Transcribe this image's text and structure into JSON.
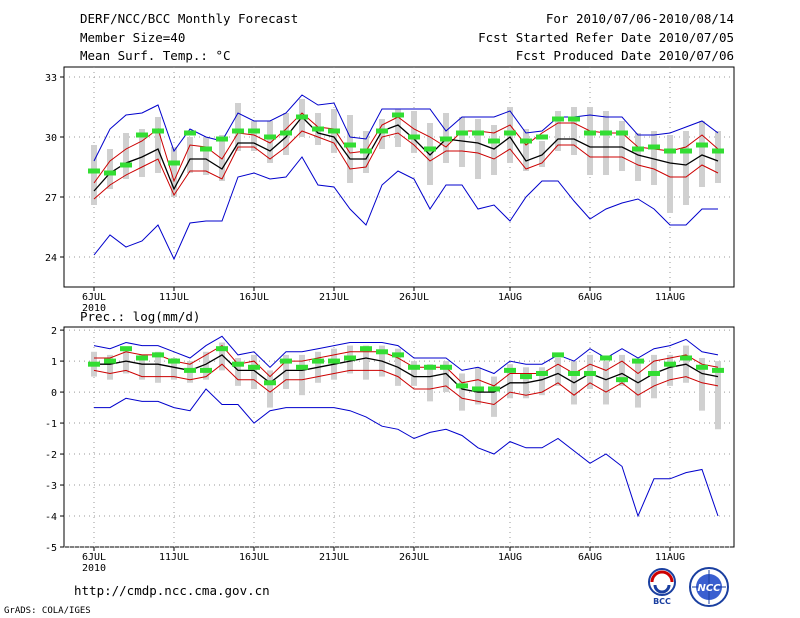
{
  "header": {
    "title": "DERF/NCC/BCC Monthly Forecast",
    "member_size": "Member Size=40",
    "variable": "Mean Surf. Temp.: °C",
    "period": "For 2010/07/06-2010/08/14",
    "fcst_started": "Fcst Started Refer Date 2010/07/05",
    "fcst_produced": "Fcst Produced Date 2010/07/06"
  },
  "footer": {
    "url": "http://cmdp.ncc.cma.gov.cn",
    "grads": "GrADS: COLA/IGES",
    "logo_bcc": "BCC",
    "logo_ncc": "NCC"
  },
  "colors": {
    "max_min": "#0000cc",
    "pct": "#cc0000",
    "mean": "#000000",
    "box": "#d0d0d0",
    "obs": "#33dd33",
    "grid": "#999999"
  },
  "chart_data": [
    {
      "type": "line",
      "title": "Mean Surf. Temp.: °C",
      "x_tick_labels": [
        "6JUL",
        "11JUL",
        "16JUL",
        "21JUL",
        "26JUL",
        "1AUG",
        "6AUG",
        "11AUG"
      ],
      "x_tick_days": [
        1,
        6,
        11,
        16,
        21,
        27,
        32,
        37
      ],
      "year_label": "2010",
      "ylim": [
        22.5,
        33.5
      ],
      "y_ticks": [
        24,
        27,
        30,
        33
      ],
      "days": [
        1,
        2,
        3,
        4,
        5,
        6,
        7,
        8,
        9,
        10,
        11,
        12,
        13,
        14,
        15,
        16,
        17,
        18,
        19,
        20,
        21,
        22,
        23,
        24,
        25,
        26,
        27,
        28,
        29,
        30,
        31,
        32,
        33,
        34,
        35,
        36,
        37,
        38,
        39,
        40
      ],
      "series": [
        {
          "name": "max",
          "style": "max_min",
          "values": [
            28.8,
            30.4,
            31.1,
            31.2,
            31.6,
            29.3,
            30.4,
            30.0,
            29.8,
            31.2,
            30.8,
            30.8,
            31.2,
            32.1,
            31.6,
            31.7,
            30.0,
            29.9,
            31.4,
            31.4,
            31.4,
            31.4,
            30.3,
            31.0,
            31.0,
            31.0,
            31.3,
            30.2,
            30.3,
            31.0,
            31.0,
            31.1,
            31.0,
            31.0,
            30.1,
            30.1,
            30.2,
            30.5,
            30.8,
            30.2
          ]
        },
        {
          "name": "p90",
          "style": "pct",
          "values": [
            27.7,
            28.8,
            29.4,
            29.8,
            30.4,
            27.8,
            29.6,
            29.5,
            28.9,
            30.2,
            30.1,
            29.7,
            30.4,
            31.2,
            30.5,
            30.4,
            29.2,
            29.3,
            30.6,
            31.0,
            30.4,
            30.0,
            29.5,
            30.3,
            30.3,
            30.2,
            30.6,
            29.6,
            30.2,
            30.7,
            30.7,
            30.3,
            30.2,
            30.2,
            29.5,
            29.4,
            29.3,
            29.5,
            30.1,
            29.4
          ]
        },
        {
          "name": "mean",
          "style": "mean",
          "values": [
            27.3,
            28.2,
            28.7,
            29.0,
            29.4,
            27.4,
            28.9,
            28.9,
            28.4,
            29.7,
            29.7,
            29.3,
            30.0,
            31.0,
            30.2,
            30.0,
            28.9,
            28.9,
            30.3,
            30.6,
            29.9,
            29.1,
            29.9,
            29.8,
            29.7,
            29.4,
            30.0,
            28.8,
            29.1,
            29.9,
            29.9,
            29.5,
            29.5,
            29.5,
            29.1,
            28.9,
            28.7,
            28.6,
            29.1,
            28.8
          ]
        },
        {
          "name": "p10",
          "style": "pct",
          "values": [
            26.9,
            27.6,
            28.1,
            28.5,
            28.9,
            27.1,
            28.3,
            28.3,
            27.9,
            29.5,
            29.5,
            28.9,
            29.5,
            30.3,
            30.0,
            29.7,
            28.4,
            28.5,
            30.0,
            30.2,
            29.6,
            28.8,
            29.3,
            29.3,
            29.2,
            28.9,
            29.4,
            28.4,
            28.7,
            29.6,
            29.6,
            29.0,
            29.0,
            29.0,
            28.6,
            28.4,
            28.0,
            28.0,
            28.6,
            28.2
          ]
        },
        {
          "name": "min",
          "style": "max_min",
          "values": [
            24.1,
            25.1,
            24.5,
            24.8,
            25.6,
            23.9,
            25.7,
            25.8,
            25.8,
            28.0,
            28.2,
            27.9,
            28.0,
            29.0,
            27.6,
            27.5,
            26.4,
            25.6,
            27.6,
            28.3,
            27.9,
            26.4,
            27.6,
            27.6,
            26.4,
            26.6,
            25.8,
            27.0,
            27.8,
            27.8,
            26.8,
            25.9,
            26.4,
            26.7,
            26.9,
            26.4,
            25.6,
            25.6,
            26.4,
            26.4
          ]
        },
        {
          "name": "box_low",
          "style": "box",
          "values": [
            26.6,
            27.4,
            27.9,
            28.0,
            28.2,
            27.0,
            28.2,
            28.1,
            27.8,
            29.3,
            29.3,
            28.7,
            29.1,
            30.0,
            29.6,
            29.2,
            27.7,
            28.2,
            29.4,
            29.5,
            29.2,
            27.6,
            28.7,
            28.5,
            27.9,
            28.1,
            28.7,
            28.3,
            28.5,
            29.3,
            29.1,
            28.1,
            28.1,
            28.3,
            27.8,
            27.6,
            26.2,
            26.6,
            27.5,
            27.7
          ]
        },
        {
          "name": "box_high",
          "style": "box",
          "values": [
            29.6,
            29.4,
            30.2,
            30.4,
            31.0,
            29.5,
            30.0,
            30.0,
            30.1,
            31.7,
            30.8,
            30.8,
            31.2,
            31.9,
            31.2,
            31.4,
            31.1,
            30.3,
            30.9,
            31.4,
            31.3,
            30.7,
            31.2,
            31.0,
            30.9,
            30.6,
            31.5,
            30.4,
            29.8,
            31.3,
            31.5,
            31.5,
            31.3,
            30.8,
            30.2,
            30.3,
            30.1,
            30.3,
            30.8,
            30.3
          ]
        },
        {
          "name": "obs",
          "style": "obs",
          "values": [
            28.3,
            28.2,
            28.6,
            30.1,
            30.3,
            28.7,
            30.2,
            29.4,
            29.9,
            30.3,
            30.3,
            30.0,
            30.2,
            31.0,
            30.4,
            30.3,
            29.6,
            29.3,
            30.3,
            31.1,
            30.0,
            29.4,
            29.9,
            30.2,
            30.2,
            29.8,
            30.2,
            29.8,
            30.0,
            30.9,
            30.9,
            30.2,
            30.2,
            30.2,
            29.4,
            29.5,
            29.3,
            29.3,
            29.6,
            29.3
          ]
        }
      ]
    },
    {
      "type": "line",
      "title": "Prec.: log(mm/d)",
      "x_tick_labels": [
        "6JUL",
        "11JUL",
        "16JUL",
        "21JUL",
        "26JUL",
        "1AUG",
        "6AUG",
        "11AUG"
      ],
      "x_tick_days": [
        1,
        6,
        11,
        16,
        21,
        27,
        32,
        37
      ],
      "year_label": "2010",
      "ylim": [
        -5,
        2.1
      ],
      "y_ticks": [
        -5,
        -4,
        -3,
        -2,
        -1,
        0,
        1,
        2
      ],
      "days": [
        1,
        2,
        3,
        4,
        5,
        6,
        7,
        8,
        9,
        10,
        11,
        12,
        13,
        14,
        15,
        16,
        17,
        18,
        19,
        20,
        21,
        22,
        23,
        24,
        25,
        26,
        27,
        28,
        29,
        30,
        31,
        32,
        33,
        34,
        35,
        36,
        37,
        38,
        39,
        40
      ],
      "series": [
        {
          "name": "max",
          "style": "max_min",
          "values": [
            1.5,
            1.4,
            1.6,
            1.5,
            1.5,
            1.3,
            1.1,
            1.5,
            1.8,
            1.2,
            1.3,
            0.8,
            1.3,
            1.3,
            1.4,
            1.5,
            1.6,
            1.6,
            1.6,
            1.5,
            1.1,
            1.1,
            1.1,
            0.7,
            0.8,
            0.6,
            1.0,
            0.9,
            0.9,
            1.2,
            1.0,
            1.4,
            1.1,
            1.4,
            1.1,
            1.4,
            1.5,
            1.7,
            1.3,
            1.2
          ]
        },
        {
          "name": "p90",
          "style": "pct",
          "values": [
            1.1,
            1.1,
            1.3,
            1.2,
            1.2,
            1.0,
            0.9,
            1.2,
            1.5,
            0.9,
            1.0,
            0.5,
            1.0,
            1.0,
            1.1,
            1.2,
            1.3,
            1.3,
            1.3,
            1.1,
            0.8,
            0.8,
            0.8,
            0.3,
            0.4,
            0.2,
            0.6,
            0.6,
            0.6,
            0.9,
            0.6,
            0.9,
            0.7,
            1.0,
            0.6,
            1.0,
            1.1,
            1.2,
            0.9,
            0.8
          ]
        },
        {
          "name": "mean",
          "style": "mean",
          "values": [
            0.9,
            0.9,
            1.0,
            0.9,
            0.9,
            0.8,
            0.7,
            0.9,
            1.2,
            0.7,
            0.7,
            0.3,
            0.7,
            0.7,
            0.8,
            0.9,
            1.0,
            1.1,
            1.0,
            0.8,
            0.5,
            0.5,
            0.6,
            0.1,
            0.0,
            0.0,
            0.3,
            0.3,
            0.4,
            0.6,
            0.3,
            0.6,
            0.4,
            0.6,
            0.3,
            0.6,
            0.8,
            0.9,
            0.6,
            0.5
          ]
        },
        {
          "name": "p10",
          "style": "pct",
          "values": [
            0.7,
            0.6,
            0.7,
            0.5,
            0.5,
            0.5,
            0.4,
            0.5,
            0.9,
            0.4,
            0.4,
            0.0,
            0.4,
            0.4,
            0.5,
            0.6,
            0.7,
            0.7,
            0.7,
            0.5,
            0.1,
            0.1,
            0.2,
            -0.2,
            -0.3,
            -0.4,
            0.0,
            -0.1,
            0.0,
            0.3,
            -0.1,
            0.3,
            0.0,
            0.3,
            -0.1,
            0.2,
            0.4,
            0.5,
            0.3,
            0.2
          ]
        },
        {
          "name": "min",
          "style": "max_min",
          "values": [
            -0.5,
            -0.5,
            -0.2,
            -0.3,
            -0.3,
            -0.5,
            -0.6,
            0.1,
            -0.4,
            -0.4,
            -1.0,
            -0.6,
            -0.5,
            -0.5,
            -0.5,
            -0.5,
            -0.6,
            -0.8,
            -1.1,
            -1.2,
            -1.5,
            -1.3,
            -1.2,
            -1.4,
            -1.8,
            -2.0,
            -1.6,
            -1.8,
            -1.8,
            -1.5,
            -1.9,
            -2.3,
            -2.0,
            -2.4,
            -4.0,
            -2.8,
            -2.8,
            -2.6,
            -2.5,
            -4.0
          ]
        },
        {
          "name": "box_low",
          "style": "box",
          "values": [
            0.5,
            0.4,
            0.6,
            0.4,
            0.3,
            0.4,
            0.3,
            0.4,
            0.7,
            0.2,
            0.1,
            -0.5,
            0.1,
            -0.1,
            0.3,
            0.4,
            0.6,
            0.4,
            0.5,
            0.2,
            0.2,
            -0.3,
            0.0,
            -0.6,
            -0.4,
            -0.8,
            -0.2,
            -0.2,
            -0.1,
            0.2,
            -0.4,
            0.1,
            -0.4,
            0.2,
            -0.5,
            -0.2,
            0.2,
            0.3,
            -0.6,
            -1.2
          ]
        },
        {
          "name": "box_high",
          "style": "box",
          "values": [
            1.3,
            1.2,
            1.4,
            1.2,
            1.3,
            1.1,
            1.0,
            1.3,
            1.6,
            1.1,
            1.2,
            0.7,
            1.2,
            1.2,
            1.3,
            1.4,
            1.5,
            1.5,
            1.5,
            1.4,
            1.0,
            0.9,
            1.0,
            0.6,
            0.8,
            0.5,
            0.9,
            0.8,
            0.8,
            1.1,
            1.0,
            1.2,
            1.0,
            1.2,
            1.0,
            1.2,
            1.2,
            1.5,
            1.1,
            1.0
          ]
        },
        {
          "name": "obs",
          "style": "obs",
          "values": [
            0.9,
            1.0,
            1.4,
            1.1,
            1.2,
            1.0,
            0.7,
            0.7,
            1.4,
            0.9,
            0.8,
            0.3,
            1.0,
            0.8,
            1.0,
            1.0,
            1.1,
            1.4,
            1.3,
            1.2,
            0.8,
            0.8,
            0.8,
            0.2,
            0.1,
            0.1,
            0.7,
            0.5,
            0.6,
            1.2,
            0.6,
            0.6,
            1.1,
            0.4,
            1.0,
            0.6,
            0.9,
            1.1,
            0.8,
            0.7
          ]
        }
      ]
    }
  ]
}
